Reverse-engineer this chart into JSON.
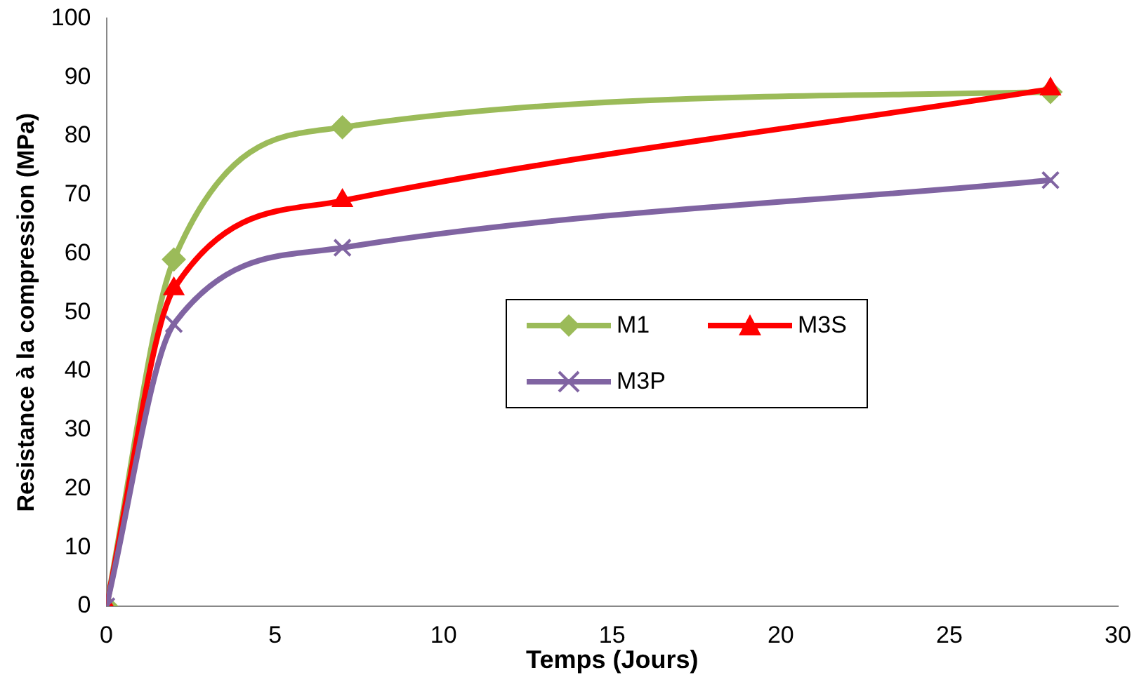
{
  "chart_data": {
    "type": "line",
    "xlabel": "Temps (Jours)",
    "ylabel": "Resistance à la compression (MPa)",
    "x": [
      0,
      2,
      7,
      28
    ],
    "series": [
      {
        "name": "M1",
        "color": "#9bbb59",
        "marker": "diamond",
        "values": [
          0,
          59,
          81.5,
          87.5
        ]
      },
      {
        "name": "M3S",
        "color": "#ff0000",
        "marker": "triangle",
        "values": [
          0,
          54,
          69,
          88
        ]
      },
      {
        "name": "M3P",
        "color": "#8064a2",
        "marker": "cross",
        "values": [
          0,
          48,
          61,
          72.5
        ]
      }
    ],
    "xlim": [
      0,
      30
    ],
    "xticks": [
      0,
      5,
      10,
      15,
      20,
      25,
      30
    ],
    "ylim": [
      0,
      100
    ],
    "yticks": [
      0,
      10,
      20,
      30,
      40,
      50,
      60,
      70,
      80,
      90,
      100
    ],
    "grid": false,
    "legend": "right"
  }
}
